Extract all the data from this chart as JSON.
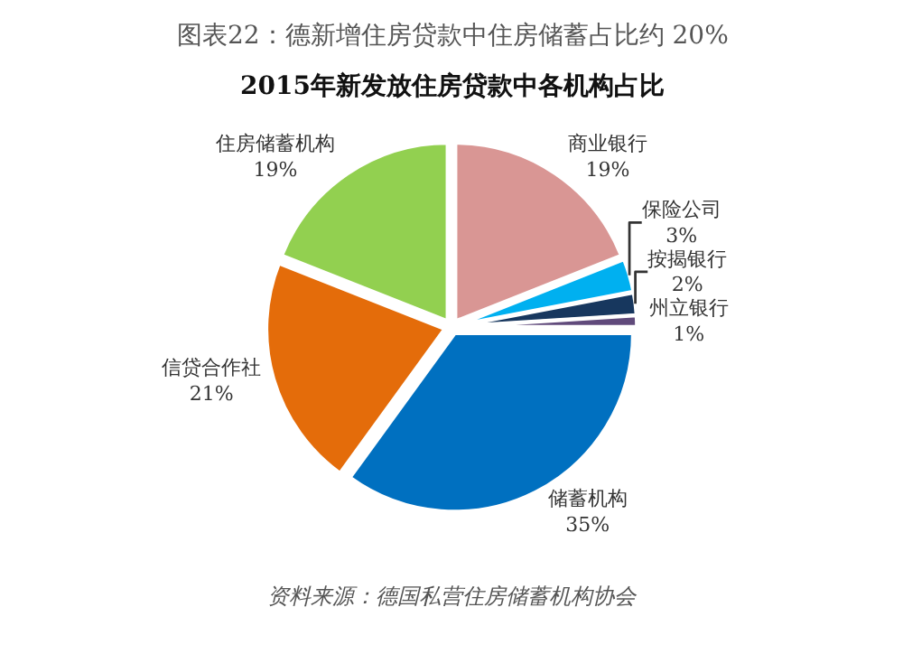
{
  "chart_data": {
    "type": "pie",
    "title": "图表22：德新增住房贷款中住房储蓄占比约 20%",
    "subtitle": "2015年新发放住房贷款中各机构占比",
    "categories": [
      "商业银行",
      "保险公司",
      "按揭银行",
      "州立银行",
      "储蓄机构",
      "信贷合作社",
      "住房储蓄机构"
    ],
    "values": [
      19,
      3,
      2,
      1,
      35,
      21,
      19
    ],
    "value_labels": [
      "19%",
      "3%",
      "2%",
      "1%",
      "35%",
      "21%",
      "19%"
    ],
    "colors": [
      "#d99694",
      "#00b0f0",
      "#17375e",
      "#604a7b",
      "#0070c0",
      "#e46c0a",
      "#92d050"
    ],
    "legend": false,
    "annotations": [
      "资料来源：德国私营住房储蓄机构协会"
    ]
  }
}
